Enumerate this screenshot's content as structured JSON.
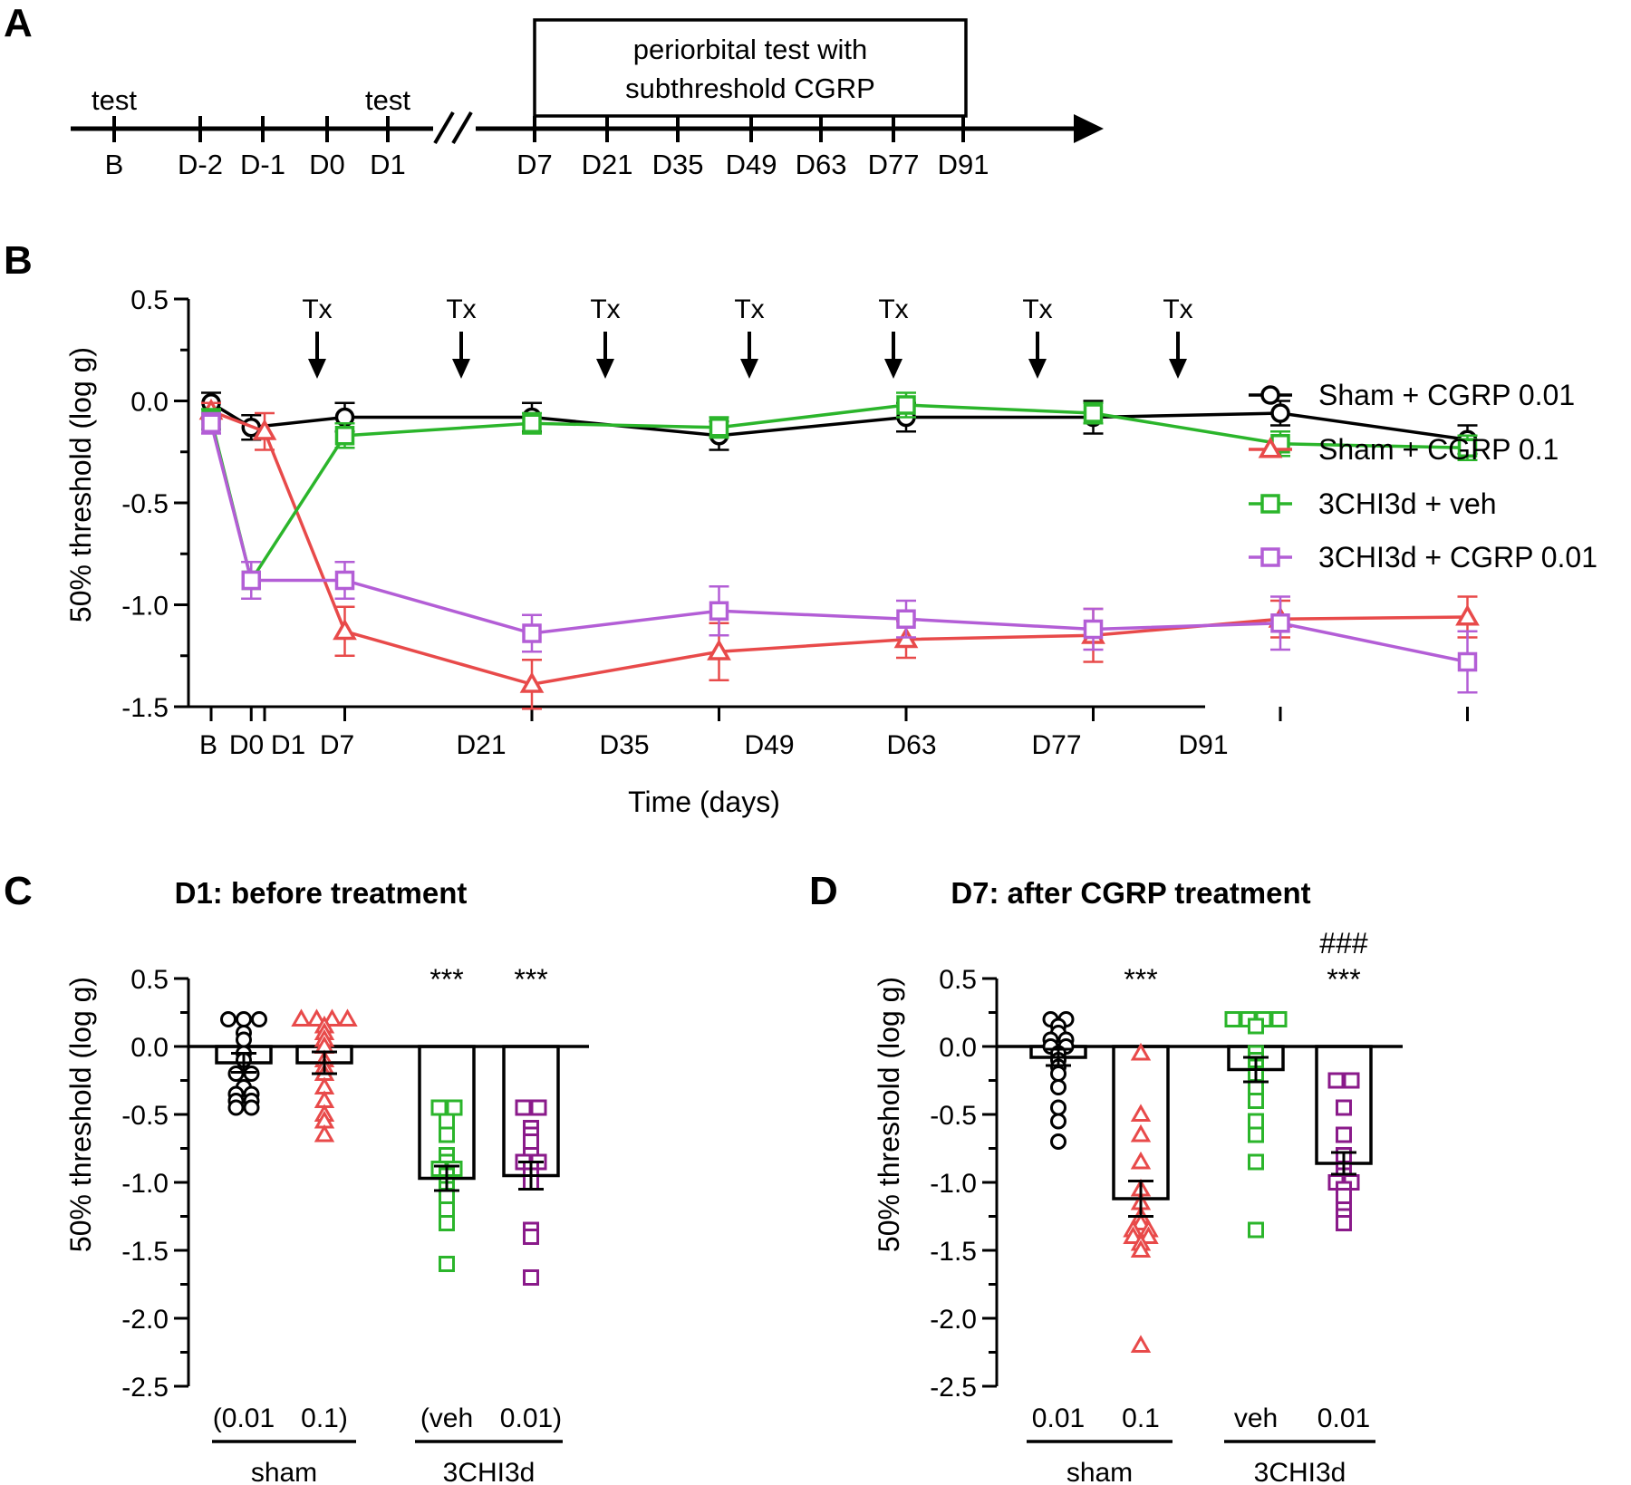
{
  "panels": [
    "A",
    "B",
    "C",
    "D"
  ],
  "colors": {
    "sham_cgrp_001": "#000000",
    "sham_cgrp_01": "#e84a4a",
    "chi_veh": "#2bb52b",
    "chi_cgrp_001": "#b35ed6",
    "chi_cgrp_001_scatter": "#8a1a8a"
  },
  "timeline": {
    "left_labels": [
      "B",
      "D-2",
      "D-1",
      "D0",
      "D1"
    ],
    "right_labels": [
      "D7",
      "D21",
      "D35",
      "D49",
      "D63",
      "D77",
      "D91"
    ],
    "test_labels": [
      "test",
      "test"
    ],
    "box_text": [
      "periorbital test with",
      "subthreshold CGRP"
    ],
    "break_symbol": "//"
  },
  "chart_data": [
    {
      "panel": "B",
      "type": "line",
      "xlabel": "Time (days)",
      "ylabel": "50% threshold (log g)",
      "ylim": [
        -1.5,
        0.5
      ],
      "yticks": [
        "0.5",
        "0.0",
        "-0.5",
        "-1.0",
        "-1.5"
      ],
      "x_labels": [
        "B",
        "D0",
        "D1",
        "D7",
        "D21",
        "D35",
        "D49",
        "D63",
        "D77",
        "D91"
      ],
      "x_days": [
        -3,
        0,
        1,
        7,
        21,
        35,
        49,
        63,
        77,
        91
      ],
      "annotation_label": "Tx",
      "treatment_days": [
        5,
        19,
        33,
        47,
        61,
        75,
        89
      ],
      "series": [
        {
          "name": "Sham + CGRP 0.01",
          "marker": "circle",
          "color": "#000000",
          "x": [
            -3,
            0,
            7,
            21,
            35,
            49,
            63,
            77,
            91
          ],
          "y": [
            -0.01,
            -0.13,
            -0.08,
            -0.08,
            -0.17,
            -0.08,
            -0.08,
            -0.06,
            -0.19
          ],
          "err": [
            0.05,
            0.06,
            0.07,
            0.07,
            0.07,
            0.07,
            0.08,
            0.06,
            0.07
          ]
        },
        {
          "name": "Sham + CGRP 0.1",
          "marker": "triangle",
          "color": "#e84a4a",
          "x": [
            -3,
            1,
            7,
            21,
            35,
            49,
            63,
            77,
            91
          ],
          "y": [
            -0.05,
            -0.15,
            -1.13,
            -1.39,
            -1.23,
            -1.17,
            -1.15,
            -1.07,
            -1.06
          ],
          "err": [
            0.04,
            0.09,
            0.12,
            0.12,
            0.14,
            0.09,
            0.13,
            0.09,
            0.1
          ]
        },
        {
          "name": "3CHI3d + veh",
          "marker": "square",
          "color": "#2bb52b",
          "x": [
            -3,
            0,
            7,
            21,
            35,
            49,
            63,
            77,
            91
          ],
          "y": [
            -0.09,
            -0.88,
            -0.17,
            -0.11,
            -0.13,
            -0.02,
            -0.06,
            -0.21,
            -0.23
          ],
          "err": [
            0.05,
            0.09,
            0.06,
            0.05,
            0.05,
            0.06,
            0.05,
            0.06,
            0.06
          ]
        },
        {
          "name": "3CHI3d + CGRP 0.01",
          "marker": "square",
          "color": "#b35ed6",
          "x": [
            -3,
            0,
            7,
            21,
            35,
            49,
            63,
            77,
            91
          ],
          "y": [
            -0.11,
            -0.88,
            -0.88,
            -1.14,
            -1.03,
            -1.07,
            -1.12,
            -1.09,
            -1.28
          ],
          "err": [
            0.05,
            0.09,
            0.09,
            0.09,
            0.12,
            0.09,
            0.1,
            0.13,
            0.15
          ]
        }
      ]
    },
    {
      "panel": "C",
      "type": "bar",
      "title": "D1: before treatment",
      "ylabel": "50% threshold (log g)",
      "ylim": [
        -2.5,
        0.5
      ],
      "yticks": [
        "0.5",
        "0.0",
        "-0.5",
        "-1.0",
        "-1.5",
        "-2.0",
        "-2.5"
      ],
      "categories": [
        "(0.01",
        "0.1)",
        "(veh",
        "0.01)"
      ],
      "groups": [
        "sham",
        "3CHI3d"
      ],
      "significance": [
        "",
        "",
        "***",
        "***"
      ],
      "means": [
        -0.12,
        -0.12,
        -0.97,
        -0.95
      ],
      "sem": [
        0.07,
        0.08,
        0.09,
        0.1
      ],
      "points": [
        [
          0.2,
          0.2,
          0.2,
          0.1,
          0.05,
          -0.05,
          -0.1,
          -0.2,
          -0.2,
          -0.3,
          -0.35,
          -0.35,
          -0.4,
          -0.4,
          -0.45,
          -0.45
        ],
        [
          0.2,
          0.2,
          0.2,
          0.2,
          0.15,
          0.1,
          0.05,
          0.0,
          -0.1,
          -0.15,
          -0.2,
          -0.3,
          -0.4,
          -0.5,
          -0.55,
          -0.65
        ],
        [
          -0.45,
          -0.45,
          -0.55,
          -0.65,
          -0.8,
          -0.85,
          -0.9,
          -0.9,
          -0.95,
          -1.0,
          -1.05,
          -1.1,
          -1.2,
          -1.3,
          -1.6
        ],
        [
          -0.45,
          -0.45,
          -0.6,
          -0.65,
          -0.7,
          -0.8,
          -0.85,
          -0.85,
          -0.9,
          -0.95,
          -1.0,
          -1.35,
          -1.4,
          -1.7
        ]
      ],
      "point_colors": [
        "#000000",
        "#e84a4a",
        "#2bb52b",
        "#8a1a8a"
      ],
      "markers": [
        "circle",
        "triangle",
        "square",
        "square"
      ]
    },
    {
      "panel": "D",
      "type": "bar",
      "title": "D7: after CGRP treatment",
      "ylabel": "50% threshold (log g)",
      "ylim": [
        -2.5,
        0.5
      ],
      "yticks": [
        "0.5",
        "0.0",
        "-0.5",
        "-1.0",
        "-1.5",
        "-2.0",
        "-2.5"
      ],
      "categories": [
        "0.01",
        "0.1",
        "veh",
        "0.01"
      ],
      "groups": [
        "sham",
        "3CHI3d"
      ],
      "significance": [
        "",
        "***",
        "",
        "***"
      ],
      "significance2": [
        "",
        "",
        "",
        "###"
      ],
      "means": [
        -0.08,
        -1.12,
        -0.17,
        -0.86
      ],
      "sem": [
        0.06,
        0.13,
        0.09,
        0.08
      ],
      "points": [
        [
          0.2,
          0.2,
          0.15,
          0.1,
          0.05,
          0.05,
          0.0,
          0.0,
          -0.05,
          -0.1,
          -0.15,
          -0.2,
          -0.3,
          -0.45,
          -0.55,
          -0.7
        ],
        [
          -0.05,
          -0.5,
          -0.65,
          -0.85,
          -1.05,
          -1.15,
          -1.25,
          -1.3,
          -1.35,
          -1.35,
          -1.4,
          -1.4,
          -1.45,
          -1.5,
          -2.2
        ],
        [
          0.2,
          0.2,
          0.2,
          0.2,
          0.15,
          -0.05,
          -0.1,
          -0.15,
          -0.2,
          -0.3,
          -0.4,
          -0.55,
          -0.65,
          -0.85,
          -1.35
        ],
        [
          -0.25,
          -0.25,
          -0.45,
          -0.65,
          -0.8,
          -0.9,
          -0.95,
          -1.0,
          -1.0,
          -1.05,
          -1.1,
          -1.2,
          -1.25,
          -1.3
        ]
      ],
      "point_colors": [
        "#000000",
        "#e84a4a",
        "#2bb52b",
        "#8a1a8a"
      ],
      "markers": [
        "circle",
        "triangle",
        "square",
        "square"
      ]
    }
  ]
}
